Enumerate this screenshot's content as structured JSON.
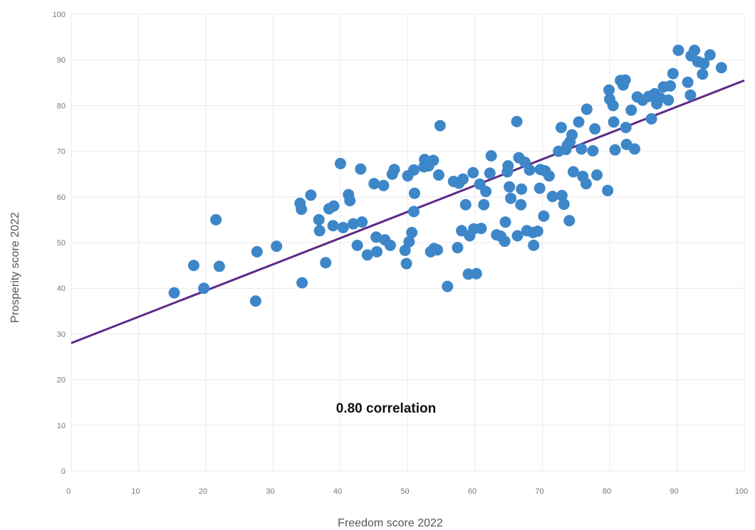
{
  "chart_data": {
    "type": "scatter",
    "xlabel": "Freedom score 2022",
    "ylabel": "Prosperity score 2022",
    "annotation": "0.80 correlation",
    "xlim": [
      0,
      100
    ],
    "ylim": [
      0,
      100
    ],
    "x_ticks": [
      "0",
      "10",
      "20",
      "30",
      "40",
      "50",
      "60",
      "70",
      "80",
      "90",
      "100"
    ],
    "y_ticks": [
      "0",
      "10",
      "20",
      "30",
      "40",
      "50",
      "60",
      "70",
      "80",
      "90",
      "100"
    ],
    "grid": true,
    "colors": {
      "points": "#3d87c9",
      "trendline": "#5b2a86"
    },
    "trendline": {
      "x": [
        0,
        100
      ],
      "y": [
        28,
        85.5
      ]
    },
    "points": [
      {
        "x": 15.3,
        "y": 39
      },
      {
        "x": 18.2,
        "y": 45
      },
      {
        "x": 19.7,
        "y": 40
      },
      {
        "x": 21.5,
        "y": 55
      },
      {
        "x": 22,
        "y": 44.8
      },
      {
        "x": 27.4,
        "y": 37.2
      },
      {
        "x": 27.6,
        "y": 48
      },
      {
        "x": 30.5,
        "y": 49.2
      },
      {
        "x": 34,
        "y": 58.6
      },
      {
        "x": 34.2,
        "y": 57.3
      },
      {
        "x": 34.3,
        "y": 41.2
      },
      {
        "x": 35.6,
        "y": 60.4
      },
      {
        "x": 36.8,
        "y": 55
      },
      {
        "x": 36.9,
        "y": 52.6
      },
      {
        "x": 37.8,
        "y": 45.6
      },
      {
        "x": 38.3,
        "y": 57.4
      },
      {
        "x": 38.9,
        "y": 53.7
      },
      {
        "x": 39,
        "y": 58
      },
      {
        "x": 40,
        "y": 67.3
      },
      {
        "x": 40.4,
        "y": 53.3
      },
      {
        "x": 41.2,
        "y": 60.5
      },
      {
        "x": 41.4,
        "y": 59.2
      },
      {
        "x": 41.9,
        "y": 54.1
      },
      {
        "x": 42.5,
        "y": 49.4
      },
      {
        "x": 43,
        "y": 66.1
      },
      {
        "x": 43.2,
        "y": 54.5
      },
      {
        "x": 44,
        "y": 47.3
      },
      {
        "x": 45,
        "y": 62.9
      },
      {
        "x": 45.3,
        "y": 51.2
      },
      {
        "x": 45.4,
        "y": 48
      },
      {
        "x": 46.4,
        "y": 62.5
      },
      {
        "x": 46.6,
        "y": 50.6
      },
      {
        "x": 47.4,
        "y": 49.4
      },
      {
        "x": 47.7,
        "y": 65
      },
      {
        "x": 48,
        "y": 66
      },
      {
        "x": 49.6,
        "y": 48.3
      },
      {
        "x": 49.8,
        "y": 45.4
      },
      {
        "x": 50,
        "y": 64.6
      },
      {
        "x": 50.2,
        "y": 50.2
      },
      {
        "x": 50.6,
        "y": 52.2
      },
      {
        "x": 50.9,
        "y": 65.9
      },
      {
        "x": 50.9,
        "y": 56.8
      },
      {
        "x": 51,
        "y": 60.8
      },
      {
        "x": 52.4,
        "y": 66.6
      },
      {
        "x": 52.5,
        "y": 68.2
      },
      {
        "x": 53.1,
        "y": 66.8
      },
      {
        "x": 53.4,
        "y": 48
      },
      {
        "x": 53.8,
        "y": 68
      },
      {
        "x": 53.9,
        "y": 48.7
      },
      {
        "x": 54.4,
        "y": 48.4
      },
      {
        "x": 54.6,
        "y": 64.8
      },
      {
        "x": 54.8,
        "y": 75.6
      },
      {
        "x": 55.9,
        "y": 40.4
      },
      {
        "x": 56.8,
        "y": 63.4
      },
      {
        "x": 57.4,
        "y": 48.9
      },
      {
        "x": 57.6,
        "y": 63
      },
      {
        "x": 58,
        "y": 52.6
      },
      {
        "x": 58.2,
        "y": 63.9
      },
      {
        "x": 58.6,
        "y": 58.3
      },
      {
        "x": 59,
        "y": 43.1
      },
      {
        "x": 59.2,
        "y": 51.5
      },
      {
        "x": 59.7,
        "y": 65.3
      },
      {
        "x": 59.8,
        "y": 53
      },
      {
        "x": 60.2,
        "y": 43.2
      },
      {
        "x": 60.7,
        "y": 62.8
      },
      {
        "x": 60.9,
        "y": 53.1
      },
      {
        "x": 61.3,
        "y": 58.3
      },
      {
        "x": 61.6,
        "y": 61.2
      },
      {
        "x": 62.2,
        "y": 65.2
      },
      {
        "x": 62.4,
        "y": 69
      },
      {
        "x": 63.2,
        "y": 51.7
      },
      {
        "x": 63.8,
        "y": 51.4
      },
      {
        "x": 64.4,
        "y": 50.3
      },
      {
        "x": 64.5,
        "y": 54.5
      },
      {
        "x": 64.8,
        "y": 65.5
      },
      {
        "x": 64.9,
        "y": 66.8
      },
      {
        "x": 65.1,
        "y": 62.2
      },
      {
        "x": 65.3,
        "y": 59.7
      },
      {
        "x": 66.2,
        "y": 76.5
      },
      {
        "x": 66.3,
        "y": 51.5
      },
      {
        "x": 66.5,
        "y": 68.6
      },
      {
        "x": 66.8,
        "y": 58.3
      },
      {
        "x": 66.9,
        "y": 61.7
      },
      {
        "x": 67.4,
        "y": 67.6
      },
      {
        "x": 67.7,
        "y": 52.6
      },
      {
        "x": 68.1,
        "y": 65.9
      },
      {
        "x": 68.6,
        "y": 52.2
      },
      {
        "x": 68.7,
        "y": 49.4
      },
      {
        "x": 69.3,
        "y": 52.5
      },
      {
        "x": 69.6,
        "y": 61.9
      },
      {
        "x": 69.7,
        "y": 66
      },
      {
        "x": 70.2,
        "y": 55.8
      },
      {
        "x": 70.4,
        "y": 65.7
      },
      {
        "x": 71,
        "y": 64.6
      },
      {
        "x": 71.5,
        "y": 60.1
      },
      {
        "x": 72.4,
        "y": 70
      },
      {
        "x": 72.8,
        "y": 75.2
      },
      {
        "x": 72.9,
        "y": 60.3
      },
      {
        "x": 73.2,
        "y": 58.4
      },
      {
        "x": 73.5,
        "y": 70.4
      },
      {
        "x": 73.7,
        "y": 71.3
      },
      {
        "x": 74,
        "y": 54.8
      },
      {
        "x": 74.1,
        "y": 72.1
      },
      {
        "x": 74.4,
        "y": 73.6
      },
      {
        "x": 74.6,
        "y": 65.5
      },
      {
        "x": 75.4,
        "y": 76.4
      },
      {
        "x": 75.8,
        "y": 70.5
      },
      {
        "x": 76,
        "y": 64.5
      },
      {
        "x": 76.5,
        "y": 62.9
      },
      {
        "x": 76.6,
        "y": 79.2
      },
      {
        "x": 77.5,
        "y": 70.1
      },
      {
        "x": 77.8,
        "y": 74.9
      },
      {
        "x": 78.1,
        "y": 64.8
      },
      {
        "x": 79.7,
        "y": 61.4
      },
      {
        "x": 79.9,
        "y": 83.4
      },
      {
        "x": 80,
        "y": 81.4
      },
      {
        "x": 80.5,
        "y": 80
      },
      {
        "x": 80.6,
        "y": 76.4
      },
      {
        "x": 80.8,
        "y": 70.3
      },
      {
        "x": 81.6,
        "y": 85.5
      },
      {
        "x": 82,
        "y": 84.5
      },
      {
        "x": 82.3,
        "y": 85.6
      },
      {
        "x": 82.4,
        "y": 75.2
      },
      {
        "x": 82.5,
        "y": 71.5
      },
      {
        "x": 83.2,
        "y": 79
      },
      {
        "x": 83.7,
        "y": 70.5
      },
      {
        "x": 84.1,
        "y": 81.9
      },
      {
        "x": 84.9,
        "y": 81.2
      },
      {
        "x": 85.8,
        "y": 82
      },
      {
        "x": 86.2,
        "y": 77.1
      },
      {
        "x": 86.7,
        "y": 82.6
      },
      {
        "x": 87,
        "y": 80.4
      },
      {
        "x": 87.5,
        "y": 81.7
      },
      {
        "x": 88,
        "y": 84.1
      },
      {
        "x": 88.7,
        "y": 81.2
      },
      {
        "x": 89,
        "y": 84.3
      },
      {
        "x": 89.4,
        "y": 87
      },
      {
        "x": 90.2,
        "y": 92.1
      },
      {
        "x": 91.6,
        "y": 85.1
      },
      {
        "x": 92,
        "y": 82.3
      },
      {
        "x": 92.1,
        "y": 90.9
      },
      {
        "x": 92.6,
        "y": 92.1
      },
      {
        "x": 93.1,
        "y": 89.6
      },
      {
        "x": 93.8,
        "y": 86.9
      },
      {
        "x": 94,
        "y": 89.2
      },
      {
        "x": 94.9,
        "y": 91.1
      },
      {
        "x": 96.6,
        "y": 88.3
      }
    ]
  }
}
